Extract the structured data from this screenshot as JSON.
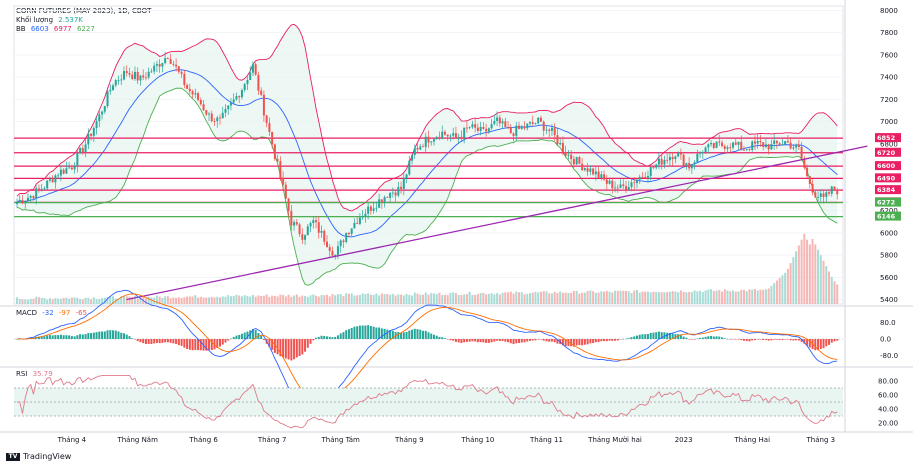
{
  "header": {
    "title": "CORN FUTURES (MAY 2023), 1D, CBOT",
    "volume_label": "Khối lượng",
    "volume_value": "2.537K",
    "bb_label": "BB",
    "bb_basis": "6603",
    "bb_upper": "6977",
    "bb_lower": "6227"
  },
  "macd": {
    "label": "MACD",
    "v1": "-32",
    "v2": "-97",
    "v3": "-65"
  },
  "rsi": {
    "label": "RSI",
    "value": "35.79"
  },
  "branding": {
    "name": "TradingView"
  },
  "colors": {
    "up": "#26a69a",
    "down": "#ef5350",
    "upper_band": "#e91e63",
    "lower_band": "#4caf50",
    "basis": "#2962ff",
    "trendline": "#9c27b0",
    "level_red": "#e91e63",
    "level_green": "#4caf50",
    "rsi_line": "#e07b8a"
  },
  "chart_data": {
    "type": "candlestick",
    "title": "CORN FUTURES (MAY 2023), 1D, CBOT",
    "x_tick_labels": [
      "Tháng 4",
      "Tháng Năm",
      "Tháng 6",
      "Tháng 7",
      "Tháng Tám",
      "Tháng 9",
      "Tháng 10",
      "Tháng 11",
      "Tháng Mười hai",
      "2023",
      "Tháng Hai",
      "Tháng 3"
    ],
    "x_tick_index": [
      20,
      44,
      68,
      93,
      118,
      143,
      168,
      193,
      218,
      243,
      268,
      293
    ],
    "price_axis": {
      "ticks": [
        "8000",
        "7800",
        "7600",
        "7400",
        "7200",
        "7000",
        "6800",
        "6600",
        "6400",
        "6200",
        "6000",
        "5800",
        "5600",
        "5400"
      ],
      "ylim": [
        5360,
        8040
      ]
    },
    "horizontal_levels": [
      {
        "value": 6852,
        "label": "6852",
        "color": "red"
      },
      {
        "value": 6720,
        "label": "6720",
        "color": "red"
      },
      {
        "value": 6600,
        "label": "6600",
        "color": "red"
      },
      {
        "value": 6490,
        "label": "6490",
        "color": "red"
      },
      {
        "value": 6384,
        "label": "6384",
        "color": "red"
      },
      {
        "value": 6274,
        "label": "6274",
        "color": "red"
      },
      {
        "value": 6272,
        "label": "6272",
        "color": "green"
      },
      {
        "value": 6146,
        "label": "6146",
        "color": "green"
      }
    ],
    "trendline": {
      "start": {
        "index": 40,
        "value": 5400
      },
      "end": {
        "index": 310,
        "value": 6780
      }
    },
    "close_anchors": [
      [
        0,
        6280
      ],
      [
        5,
        6330
      ],
      [
        10,
        6420
      ],
      [
        15,
        6540
      ],
      [
        20,
        6600
      ],
      [
        25,
        6800
      ],
      [
        30,
        7050
      ],
      [
        35,
        7350
      ],
      [
        40,
        7450
      ],
      [
        45,
        7380
      ],
      [
        50,
        7480
      ],
      [
        55,
        7600
      ],
      [
        58,
        7480
      ],
      [
        62,
        7300
      ],
      [
        66,
        7200
      ],
      [
        70,
        7050
      ],
      [
        74,
        7000
      ],
      [
        78,
        7150
      ],
      [
        82,
        7300
      ],
      [
        86,
        7500
      ],
      [
        88,
        7300
      ],
      [
        92,
        6900
      ],
      [
        96,
        6500
      ],
      [
        100,
        6100
      ],
      [
        104,
        5980
      ],
      [
        108,
        6100
      ],
      [
        112,
        5950
      ],
      [
        116,
        5800
      ],
      [
        120,
        6000
      ],
      [
        125,
        6150
      ],
      [
        130,
        6250
      ],
      [
        135,
        6350
      ],
      [
        140,
        6400
      ],
      [
        145,
        6750
      ],
      [
        150,
        6850
      ],
      [
        155,
        6900
      ],
      [
        160,
        6850
      ],
      [
        165,
        6950
      ],
      [
        170,
        6900
      ],
      [
        175,
        7000
      ],
      [
        180,
        6900
      ],
      [
        185,
        6950
      ],
      [
        190,
        7000
      ],
      [
        195,
        6900
      ],
      [
        200,
        6720
      ],
      [
        205,
        6620
      ],
      [
        210,
        6550
      ],
      [
        215,
        6450
      ],
      [
        220,
        6400
      ],
      [
        225,
        6470
      ],
      [
        230,
        6550
      ],
      [
        235,
        6650
      ],
      [
        240,
        6720
      ],
      [
        245,
        6600
      ],
      [
        250,
        6750
      ],
      [
        255,
        6780
      ],
      [
        260,
        6800
      ],
      [
        265,
        6760
      ],
      [
        270,
        6800
      ],
      [
        275,
        6780
      ],
      [
        280,
        6820
      ],
      [
        285,
        6750
      ],
      [
        288,
        6500
      ],
      [
        291,
        6350
      ],
      [
        294,
        6300
      ],
      [
        297,
        6384
      ]
    ],
    "bollinger": {
      "basis": 6603,
      "upper": 6977,
      "lower": 6227
    },
    "volume": {
      "label": "Khối lượng",
      "last": "2.537K",
      "ylim": [
        0,
        3000
      ],
      "base": 150,
      "peaks": [
        [
          280,
          1200
        ],
        [
          287,
          2700
        ],
        [
          290,
          2500
        ],
        [
          293,
          1500
        ]
      ]
    },
    "macd": {
      "values": [
        -32,
        -97,
        -65
      ],
      "ticks": [
        "80.0",
        "0.0",
        "-80.0"
      ],
      "ylim": [
        -120,
        120
      ]
    },
    "rsi": {
      "value": 35.79,
      "ticks": [
        "80.00",
        "60.00",
        "40.00",
        "20.00"
      ],
      "ylim": [
        10,
        90
      ],
      "band": [
        30,
        70
      ]
    }
  }
}
